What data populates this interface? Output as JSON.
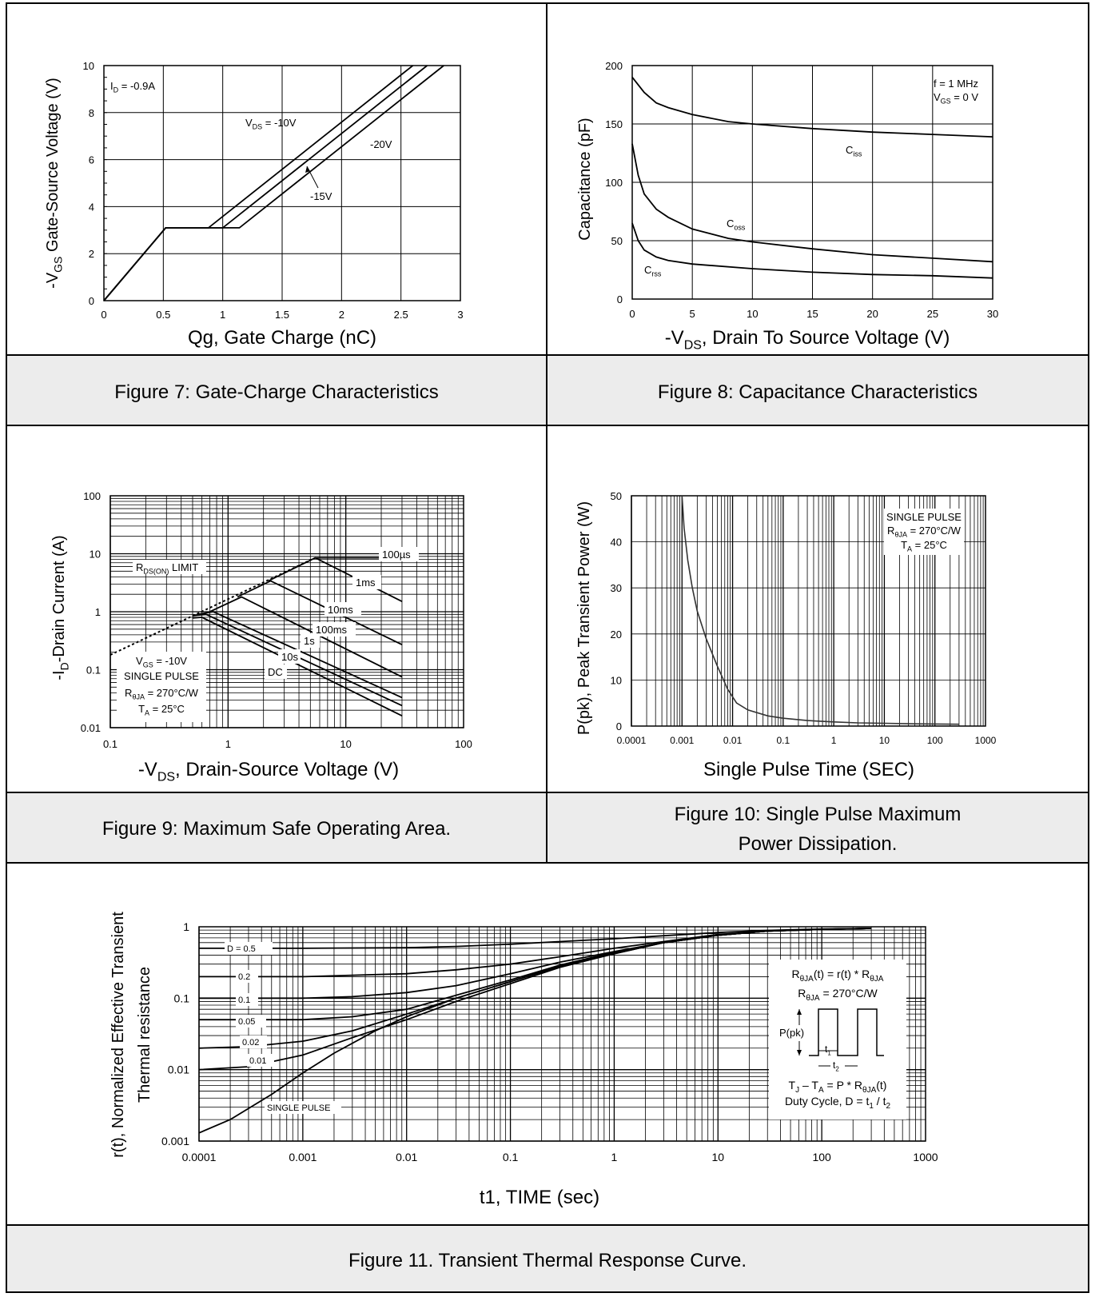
{
  "figures": {
    "fig7": {
      "caption": "Figure 7: Gate-Charge Characteristics",
      "chart_data": {
        "type": "line",
        "xlabel": "Qg, Gate Charge (nC)",
        "ylabel": {
          "pre": "-V",
          "sub": "GS",
          "post": " Gate-Source Voltage (V)"
        },
        "xlim": [
          0,
          3
        ],
        "ylim": [
          0,
          10
        ],
        "x_ticks": [
          "0",
          "0.5",
          "1",
          "1.5",
          "2",
          "2.5",
          "3"
        ],
        "y_ticks": [
          "0",
          "2",
          "4",
          "6",
          "8",
          "10"
        ],
        "condition": {
          "pre": "I",
          "sub": "D",
          "post": " = -0.9A"
        },
        "series": [
          {
            "name": "V_DS = -10V",
            "label": {
              "pre": "V",
              "sub": "DS",
              "post": " = -10V"
            },
            "x": [
              0,
              0.52,
              0.88,
              2.6
            ],
            "y": [
              0,
              3.1,
              3.1,
              10
            ]
          },
          {
            "name": "-15V",
            "label": {
              "pre": "-15V",
              "sub": "",
              "post": ""
            },
            "x": [
              0,
              0.52,
              1.0,
              2.72
            ],
            "y": [
              0,
              3.1,
              3.1,
              10
            ]
          },
          {
            "name": "-20V",
            "label": {
              "pre": "-20V",
              "sub": "",
              "post": ""
            },
            "x": [
              0,
              0.52,
              1.14,
              2.86
            ],
            "y": [
              0,
              3.1,
              3.1,
              10
            ]
          }
        ]
      }
    },
    "fig8": {
      "caption": "Figure 8: Capacitance Characteristics",
      "chart_data": {
        "type": "line",
        "xlabel": {
          "pre": "-V",
          "sub": "DS",
          "post": ", Drain To Source Voltage (V)"
        },
        "ylabel": "Capacitance (pF)",
        "xlim": [
          0,
          30
        ],
        "ylim": [
          0,
          200
        ],
        "x_ticks": [
          "0",
          "5",
          "10",
          "15",
          "20",
          "25",
          "30"
        ],
        "y_ticks": [
          "0",
          "50",
          "100",
          "150",
          "200"
        ],
        "condition_line1": "f = 1 MHz",
        "condition_line2": {
          "pre": "V",
          "sub": "GS",
          "post": " = 0 V"
        },
        "series": [
          {
            "name": "Ciss",
            "label": {
              "pre": "C",
              "sub": "iss",
              "post": ""
            },
            "x": [
              0,
              1,
              2,
              3,
              5,
              8,
              10,
              15,
              20,
              25,
              30
            ],
            "y": [
              190,
              177,
              168,
              164,
              158,
              152,
              150,
              146,
              143,
              141,
              139
            ]
          },
          {
            "name": "Coss",
            "label": {
              "pre": "C",
              "sub": "oss",
              "post": ""
            },
            "x": [
              0,
              0.5,
              1,
              2,
              3,
              5,
              8,
              10,
              15,
              20,
              25,
              30
            ],
            "y": [
              133,
              106,
              90,
              77,
              70,
              60,
              52,
              49,
              43,
              38,
              35,
              32
            ]
          },
          {
            "name": "Crss",
            "label": {
              "pre": "C",
              "sub": "rss",
              "post": ""
            },
            "x": [
              0,
              0.5,
              1,
              2,
              3,
              5,
              10,
              15,
              20,
              25,
              30
            ],
            "y": [
              65,
              50,
              42,
              36,
              33,
              30,
              26,
              23,
              21,
              20,
              18
            ]
          }
        ]
      }
    },
    "fig9": {
      "caption": "Figure 9: Maximum Safe Operating Area.",
      "chart_data": {
        "type": "line",
        "xscale": "log",
        "yscale": "log",
        "xlabel": {
          "pre": "-V",
          "sub": "DS",
          "post": ", Drain-Source Voltage (V)"
        },
        "ylabel": {
          "pre": "-I",
          "sub": "D",
          "post": "-Drain Current (A)"
        },
        "xlim": [
          0.1,
          100
        ],
        "ylim": [
          0.01,
          100
        ],
        "x_ticks": [
          "0.1",
          "1",
          "10",
          "100"
        ],
        "y_ticks": [
          "0.01",
          "0.1",
          "1",
          "10",
          "100"
        ],
        "rds_label": {
          "pre": "R",
          "sub": "DS(ON)",
          "post": " LIMIT"
        },
        "conditions": [
          {
            "pre": "V",
            "sub": "GS",
            "post": " = -10V"
          },
          {
            "pre": "SINGLE PULSE",
            "sub": "",
            "post": ""
          },
          {
            "pre": "R",
            "sub": "θJA",
            "post": " = 270°C/W"
          },
          {
            "pre": "T",
            "sub": "A",
            "post": " = 25°C"
          }
        ],
        "rds_limit": {
          "x": [
            0.1,
            5.5
          ],
          "y": [
            0.18,
            8.5
          ]
        },
        "series": [
          {
            "name": "100µs",
            "x": [
              5.5,
              30
            ],
            "y": [
              8.5,
              8.5
            ]
          },
          {
            "name": "1ms",
            "x": [
              2.2,
              5.5,
              30
            ],
            "y": [
              3.4,
              8.5,
              1.5
            ]
          },
          {
            "name": "10ms",
            "x": [
              1.2,
              2.3,
              30
            ],
            "y": [
              1.8,
              3.4,
              0.27
            ]
          },
          {
            "name": "100ms",
            "x": [
              0.7,
              1.3,
              30
            ],
            "y": [
              1.0,
              1.8,
              0.075
            ]
          },
          {
            "name": "1s",
            "x": [
              0.55,
              0.75,
              30
            ],
            "y": [
              0.9,
              1.0,
              0.033
            ]
          },
          {
            "name": "10s",
            "x": [
              0.5,
              0.65,
              30
            ],
            "y": [
              0.85,
              0.9,
              0.024
            ]
          },
          {
            "name": "DC",
            "x": [
              0.5,
              0.6,
              30
            ],
            "y": [
              0.78,
              0.8,
              0.016
            ]
          }
        ]
      }
    },
    "fig10": {
      "caption_line1": "Figure 10: Single Pulse Maximum",
      "caption_line2": "Power Dissipation.",
      "chart_data": {
        "type": "line",
        "xscale": "log",
        "xlabel": "Single Pulse Time (SEC)",
        "ylabel": "P(pk), Peak Transient Power (W)",
        "xlim": [
          0.0001,
          1000
        ],
        "ylim": [
          0,
          50
        ],
        "x_ticks": [
          "0.0001",
          "0.001",
          "0.01",
          "0.1",
          "1",
          "10",
          "100",
          "1000"
        ],
        "y_ticks": [
          "0",
          "10",
          "20",
          "30",
          "40",
          "50"
        ],
        "conditions": [
          {
            "pre": "SINGLE PULSE",
            "sub": "",
            "post": ""
          },
          {
            "pre": "R",
            "sub": "θJA",
            "post": " = 270°C/W"
          },
          {
            "pre": "T",
            "sub": "A",
            "post": " = 25°C"
          }
        ],
        "series": [
          {
            "name": "P(pk)",
            "x": [
              0.001,
              0.0011,
              0.0013,
              0.0016,
              0.002,
              0.003,
              0.005,
              0.008,
              0.012,
              0.02,
              0.05,
              0.1,
              0.3,
              1,
              3,
              10,
              30,
              100,
              300
            ],
            "y": [
              50,
              43,
              36,
              30,
              25,
              19,
              13,
              8,
              5,
              3.5,
              2.2,
              1.7,
              1.2,
              0.9,
              0.7,
              0.6,
              0.5,
              0.45,
              0.4
            ]
          }
        ]
      }
    },
    "fig11": {
      "caption": "Figure 11. Transient Thermal Response Curve.",
      "chart_data": {
        "type": "line",
        "xscale": "log",
        "yscale": "log",
        "xlabel": "t1, TIME (sec)",
        "ylabel_line1": "r(t), Normalized Effective Transient",
        "ylabel_line2": "Thermal resistance",
        "xlim": [
          0.0001,
          1000
        ],
        "ylim": [
          0.001,
          1
        ],
        "x_ticks": [
          "0.0001",
          "0.001",
          "0.01",
          "0.1",
          "1",
          "10",
          "100",
          "1000"
        ],
        "y_ticks": [
          "0.001",
          "0.01",
          "0.1",
          "1"
        ],
        "series": [
          {
            "name": "D = 0.5",
            "x": [
              0.0001,
              0.001,
              0.01,
              0.03,
              0.1,
              0.3,
              1,
              3,
              10,
              30,
              100,
              300
            ],
            "y": [
              0.5,
              0.5,
              0.51,
              0.53,
              0.57,
              0.62,
              0.68,
              0.75,
              0.83,
              0.89,
              0.93,
              0.95
            ]
          },
          {
            "name": "0.2",
            "x": [
              0.0001,
              0.001,
              0.01,
              0.03,
              0.1,
              0.3,
              1,
              3,
              10,
              30,
              100,
              300
            ],
            "y": [
              0.2,
              0.2,
              0.22,
              0.25,
              0.3,
              0.38,
              0.5,
              0.62,
              0.78,
              0.87,
              0.92,
              0.95
            ]
          },
          {
            "name": "0.1",
            "x": [
              0.0001,
              0.001,
              0.003,
              0.01,
              0.03,
              0.1,
              0.3,
              1,
              3,
              10,
              30,
              100,
              300
            ],
            "y": [
              0.1,
              0.1,
              0.105,
              0.12,
              0.15,
              0.22,
              0.32,
              0.45,
              0.6,
              0.76,
              0.87,
              0.92,
              0.95
            ]
          },
          {
            "name": "0.05",
            "x": [
              0.0001,
              0.001,
              0.003,
              0.01,
              0.03,
              0.1,
              0.3,
              1,
              3,
              10,
              30,
              100,
              300
            ],
            "y": [
              0.05,
              0.05,
              0.055,
              0.07,
              0.11,
              0.18,
              0.29,
              0.44,
              0.6,
              0.76,
              0.87,
              0.92,
              0.95
            ]
          },
          {
            "name": "0.02",
            "x": [
              0.0001,
              0.0003,
              0.001,
              0.003,
              0.01,
              0.03,
              0.1,
              0.3,
              1,
              3,
              10,
              30,
              100,
              300
            ],
            "y": [
              0.02,
              0.021,
              0.025,
              0.035,
              0.06,
              0.1,
              0.17,
              0.28,
              0.43,
              0.6,
              0.76,
              0.87,
              0.92,
              0.95
            ]
          },
          {
            "name": "0.01",
            "x": [
              0.0001,
              0.0003,
              0.001,
              0.003,
              0.01,
              0.03,
              0.1,
              0.3,
              1,
              3,
              10,
              30,
              100,
              300
            ],
            "y": [
              0.01,
              0.011,
              0.016,
              0.028,
              0.05,
              0.09,
              0.16,
              0.27,
              0.42,
              0.6,
              0.76,
              0.87,
              0.92,
              0.95
            ]
          },
          {
            "name": "SINGLE PULSE",
            "x": [
              0.0001,
              0.0002,
              0.0005,
              0.001,
              0.002,
              0.005,
              0.01,
              0.03,
              0.1,
              0.3,
              1,
              3,
              10,
              30,
              100,
              300
            ],
            "y": [
              0.0013,
              0.002,
              0.0045,
              0.009,
              0.017,
              0.035,
              0.055,
              0.1,
              0.17,
              0.28,
              0.42,
              0.6,
              0.76,
              0.87,
              0.92,
              0.95
            ]
          }
        ],
        "inset": {
          "formula1": {
            "pre": "R",
            "sub": "θJA",
            "post": "(t) = r(t) * R",
            "sub2": "θJA"
          },
          "formula2": {
            "pre": "R",
            "sub": "θJA",
            "post": " = 270°C/W"
          },
          "ppk": "P(pk)",
          "t1": {
            "pre": "t",
            "sub": "1",
            "post": ""
          },
          "t2": {
            "pre": "t",
            "sub": "2",
            "post": ""
          },
          "formula3": {
            "a": "T",
            "asub": "J",
            "b": " – T",
            "bsub": "A",
            "c": " = P * R",
            "csub": "θJA",
            "d": "(t)"
          },
          "formula4": {
            "a": "Duty Cycle, D = t",
            "asub": "1",
            "b": " / t",
            "bsub": "2"
          }
        }
      }
    }
  }
}
